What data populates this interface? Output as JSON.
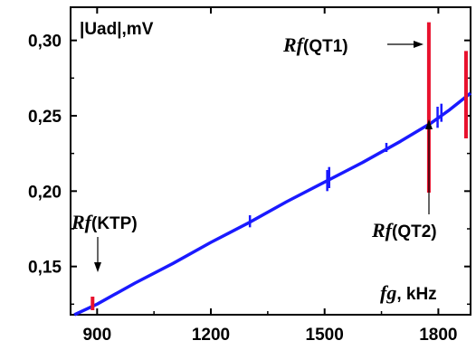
{
  "chart_data": {
    "type": "line",
    "title": "",
    "ylabel": "|Uad|,mV",
    "xlabel_italic": "fg",
    "xlabel_rest": ", kHz",
    "xlim": [
      830,
      1885
    ],
    "ylim": [
      0.118,
      0.322
    ],
    "x_ticks": [
      900,
      1200,
      1500,
      1800
    ],
    "x_tick_labels": [
      "900",
      "1200",
      "1500",
      "1800"
    ],
    "y_ticks": [
      0.15,
      0.2,
      0.25,
      0.3
    ],
    "y_tick_labels": [
      "0,15",
      "0,20",
      "0,25",
      "0,30"
    ],
    "grid": false,
    "series": [
      {
        "color": "#1a1aff",
        "x": [
          840,
          900,
          1000,
          1100,
          1200,
          1300,
          1400,
          1500,
          1600,
          1700,
          1780,
          1830,
          1885
        ],
        "y": [
          0.118,
          0.125,
          0.139,
          0.152,
          0.166,
          0.179,
          0.193,
          0.206,
          0.219,
          0.233,
          0.245,
          0.254,
          0.265
        ],
        "blips": [
          {
            "x": 1303,
            "ymin": 0.176,
            "ymax": 0.184
          },
          {
            "x": 1507,
            "ymin": 0.2,
            "ymax": 0.214
          },
          {
            "x": 1512,
            "ymin": 0.202,
            "ymax": 0.216
          },
          {
            "x": 1663,
            "ymin": 0.226,
            "ymax": 0.232
          },
          {
            "x": 1798,
            "ymin": 0.242,
            "ymax": 0.256
          },
          {
            "x": 1808,
            "ymin": 0.246,
            "ymax": 0.258
          }
        ]
      }
    ],
    "resonances": [
      {
        "color": "#e8112d",
        "x": 888,
        "ymin": 0.121,
        "ymax": 0.13
      },
      {
        "color": "#e8112d",
        "x": 1775,
        "ymin": 0.199,
        "ymax": 0.312
      },
      {
        "color": "#e8112d",
        "x": 1873,
        "ymin": 0.235,
        "ymax": 0.293
      }
    ],
    "annotations": [
      {
        "italic": "Rf",
        "text": "(KTP)"
      },
      {
        "italic": "Rf",
        "text": "(QT1)"
      },
      {
        "italic": "Rf",
        "text": "(QT2)"
      }
    ]
  }
}
